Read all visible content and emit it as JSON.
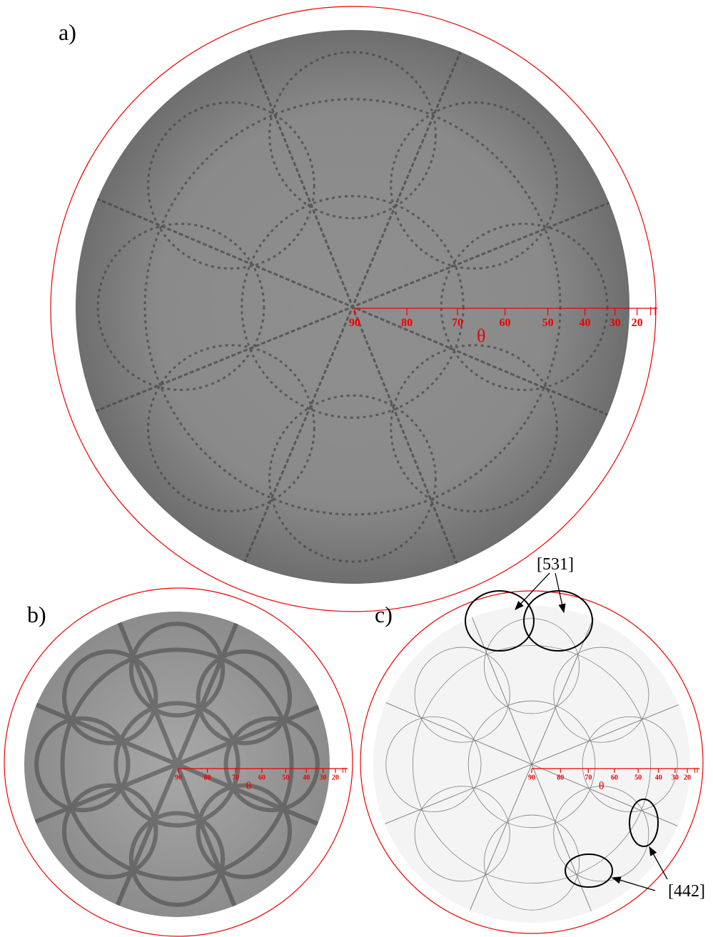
{
  "panels": [
    {
      "label": "a)",
      "scale": {
        "ticks": [
          90,
          80,
          70,
          60,
          50,
          40,
          30,
          20
        ],
        "minor_ticks": [
          10,
          0
        ],
        "symbol": "θ"
      }
    },
    {
      "label": "b)",
      "scale": {
        "ticks": [
          90,
          80,
          70,
          60,
          50,
          40,
          30,
          20
        ],
        "minor_ticks": [
          10,
          0
        ],
        "symbol": "θ"
      }
    },
    {
      "label": "c)",
      "scale": {
        "ticks": [
          90,
          80,
          70,
          60,
          50,
          40,
          30,
          20
        ],
        "minor_ticks": [
          10,
          0
        ],
        "symbol": "θ"
      }
    }
  ],
  "annotations": [
    {
      "label": "[531]"
    },
    {
      "label": "[442]"
    }
  ]
}
